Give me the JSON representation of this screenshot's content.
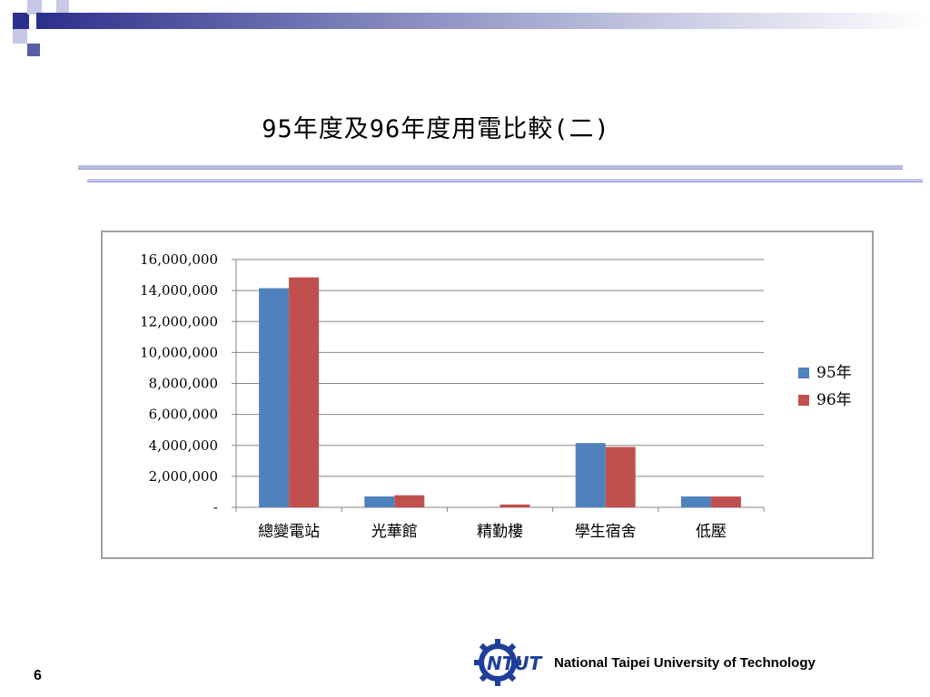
{
  "slide": {
    "title": "95年度及96年度用電比較(二)",
    "page_number": "6",
    "footer": "National Taipei University of Technology"
  },
  "colors": {
    "series_95": "#4f81bd",
    "series_96": "#c0504d",
    "deco_navy": "#2b2f8c",
    "deco_lilac": "#b8bbe0"
  },
  "logo": {
    "icon": "ntut-gear-logo-icon",
    "text": "NTUT"
  },
  "chart_data": {
    "type": "bar",
    "categories": [
      "總變電站",
      "光華館",
      "精勤樓",
      "學生宿舍",
      "低壓"
    ],
    "series": [
      {
        "name": "95年",
        "values": [
          14150000,
          700000,
          0,
          4150000,
          700000
        ]
      },
      {
        "name": "96年",
        "values": [
          14850000,
          780000,
          180000,
          3900000,
          700000
        ]
      }
    ],
    "ylim": [
      0,
      16000000
    ],
    "yticks": [
      "-",
      "2,000,000",
      "4,000,000",
      "6,000,000",
      "8,000,000",
      "10,000,000",
      "12,000,000",
      "14,000,000",
      "16,000,000"
    ],
    "grid": true,
    "legend": "right",
    "title": "",
    "xlabel": "",
    "ylabel": ""
  }
}
